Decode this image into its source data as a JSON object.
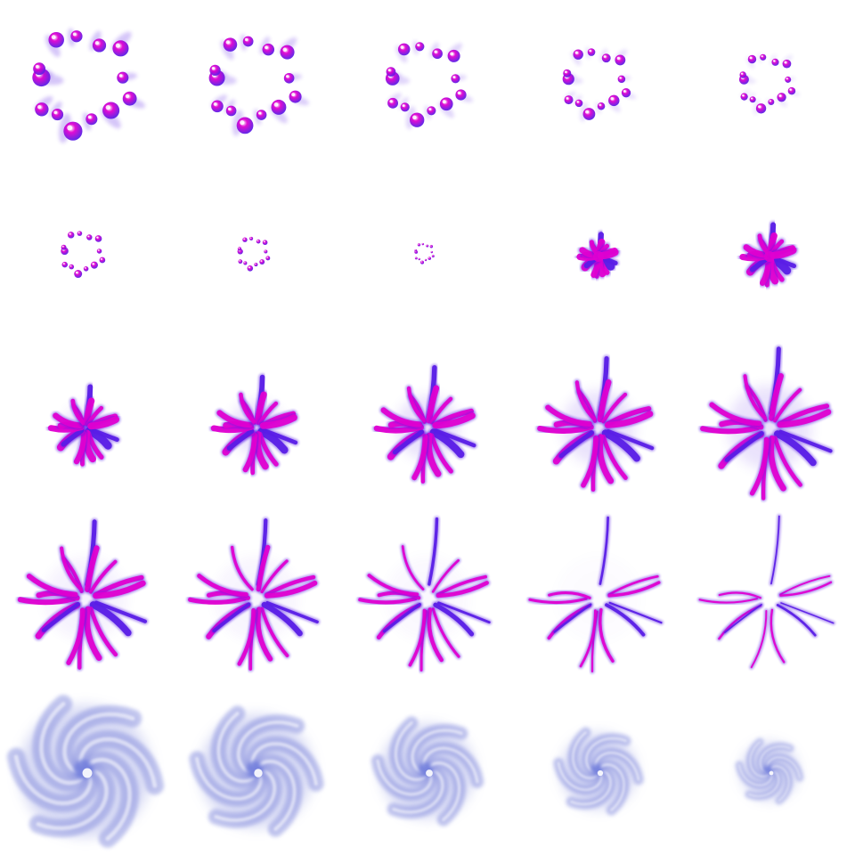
{
  "sprite_sheet": {
    "grid": {
      "columns": 5,
      "rows": 5
    },
    "background": "#ffffff",
    "colors": {
      "magenta": "#e000d0",
      "violet": "#5a1ee6",
      "orb_highlight": "#ffffff",
      "swirl": "#8f96e0",
      "swirl_core": "#6f7ddc"
    },
    "animation_phases": [
      {
        "phase": "converge-orbs",
        "frame_count": 8,
        "orb_count": 13
      },
      {
        "phase": "burst-spikes",
        "frame_count": 7,
        "spike_count": 18
      },
      {
        "phase": "fade-spikes",
        "frame_count": 5,
        "spike_count": 18
      },
      {
        "phase": "vortex-shrink",
        "frame_count": 5,
        "arm_count": 6
      }
    ],
    "frames": [
      {
        "index": 1,
        "phase": "converge-orbs",
        "progress": 0.0
      },
      {
        "index": 2,
        "phase": "converge-orbs",
        "progress": 0.14
      },
      {
        "index": 3,
        "phase": "converge-orbs",
        "progress": 0.28
      },
      {
        "index": 4,
        "phase": "converge-orbs",
        "progress": 0.43
      },
      {
        "index": 5,
        "phase": "converge-orbs",
        "progress": 0.57
      },
      {
        "index": 6,
        "phase": "converge-orbs",
        "progress": 0.71
      },
      {
        "index": 7,
        "phase": "converge-orbs",
        "progress": 0.85
      },
      {
        "index": 8,
        "phase": "converge-orbs",
        "progress": 1.0
      },
      {
        "index": 9,
        "phase": "burst-spikes",
        "progress": 0.0
      },
      {
        "index": 10,
        "phase": "burst-spikes",
        "progress": 0.17
      },
      {
        "index": 11,
        "phase": "burst-spikes",
        "progress": 0.33
      },
      {
        "index": 12,
        "phase": "burst-spikes",
        "progress": 0.5
      },
      {
        "index": 13,
        "phase": "burst-spikes",
        "progress": 0.67
      },
      {
        "index": 14,
        "phase": "burst-spikes",
        "progress": 0.83
      },
      {
        "index": 15,
        "phase": "burst-spikes",
        "progress": 1.0
      },
      {
        "index": 16,
        "phase": "fade-spikes",
        "progress": 0.0
      },
      {
        "index": 17,
        "phase": "fade-spikes",
        "progress": 0.25
      },
      {
        "index": 18,
        "phase": "fade-spikes",
        "progress": 0.5
      },
      {
        "index": 19,
        "phase": "fade-spikes",
        "progress": 0.75
      },
      {
        "index": 20,
        "phase": "fade-spikes",
        "progress": 1.0
      },
      {
        "index": 21,
        "phase": "vortex-shrink",
        "progress": 0.0
      },
      {
        "index": 22,
        "phase": "vortex-shrink",
        "progress": 0.25
      },
      {
        "index": 23,
        "phase": "vortex-shrink",
        "progress": 0.5
      },
      {
        "index": 24,
        "phase": "vortex-shrink",
        "progress": 0.75
      },
      {
        "index": 25,
        "phase": "vortex-shrink",
        "progress": 1.0
      }
    ]
  }
}
